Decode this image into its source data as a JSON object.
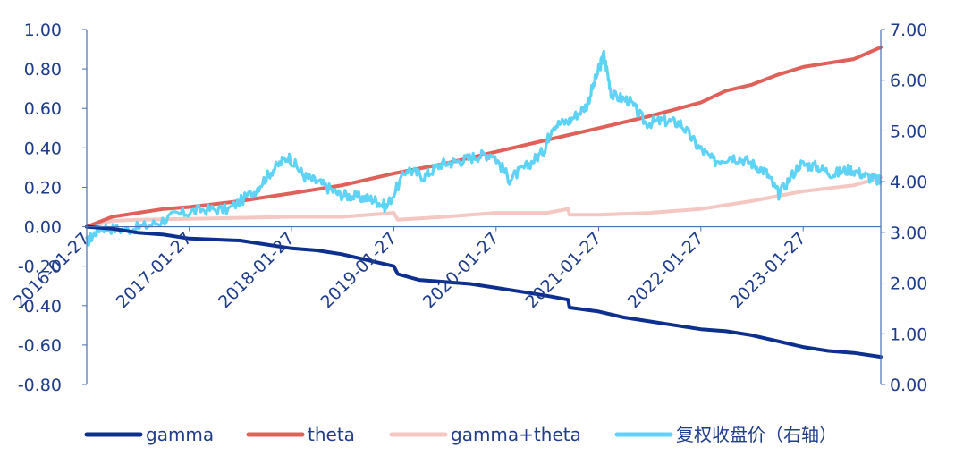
{
  "chart_data": {
    "type": "line",
    "title": "",
    "xlabel": "",
    "ylabel_left": "",
    "ylabel_right": "",
    "x_tick_labels": [
      "2016-01-27",
      "2017-01-27",
      "2018-01-27",
      "2019-01-27",
      "2020-01-27",
      "2021-01-27",
      "2022-01-27",
      "2023-01-27"
    ],
    "x_range": [
      "2016-01-27",
      "2023-10-31"
    ],
    "y_left_range": [
      -0.8,
      1.0
    ],
    "y_left_ticks": [
      "1.00",
      "0.80",
      "0.60",
      "0.40",
      "0.20",
      "0.00",
      "-0.20",
      "-0.40",
      "-0.60",
      "-0.80"
    ],
    "y_right_range": [
      0.0,
      7.0
    ],
    "y_right_ticks": [
      "7.00",
      "6.00",
      "5.00",
      "4.00",
      "3.00",
      "2.00",
      "1.00",
      "0.00"
    ],
    "grid": false,
    "legend_position": "bottom",
    "series": [
      {
        "name": "gamma",
        "axis": "left",
        "color": "#0d2f8f",
        "points": [
          [
            "2016-01-27",
            0.0
          ],
          [
            "2016-04-27",
            -0.01
          ],
          [
            "2016-07-27",
            -0.03
          ],
          [
            "2016-10-27",
            -0.04
          ],
          [
            "2017-01-27",
            -0.06
          ],
          [
            "2017-04-27",
            -0.065
          ],
          [
            "2017-07-27",
            -0.07
          ],
          [
            "2017-10-27",
            -0.09
          ],
          [
            "2018-01-27",
            -0.11
          ],
          [
            "2018-04-27",
            -0.12
          ],
          [
            "2018-07-27",
            -0.14
          ],
          [
            "2018-10-27",
            -0.17
          ],
          [
            "2019-01-27",
            -0.2
          ],
          [
            "2019-02-10",
            -0.24
          ],
          [
            "2019-04-27",
            -0.27
          ],
          [
            "2019-07-27",
            -0.28
          ],
          [
            "2019-10-27",
            -0.29
          ],
          [
            "2020-01-27",
            -0.31
          ],
          [
            "2020-04-27",
            -0.33
          ],
          [
            "2020-07-27",
            -0.35
          ],
          [
            "2020-10-10",
            -0.37
          ],
          [
            "2020-10-15",
            -0.41
          ],
          [
            "2021-01-27",
            -0.43
          ],
          [
            "2021-04-27",
            -0.46
          ],
          [
            "2021-07-27",
            -0.48
          ],
          [
            "2021-10-27",
            -0.5
          ],
          [
            "2022-01-27",
            -0.52
          ],
          [
            "2022-04-27",
            -0.53
          ],
          [
            "2022-07-27",
            -0.55
          ],
          [
            "2022-10-27",
            -0.58
          ],
          [
            "2023-01-27",
            -0.61
          ],
          [
            "2023-04-27",
            -0.63
          ],
          [
            "2023-07-27",
            -0.64
          ],
          [
            "2023-10-31",
            -0.66
          ]
        ]
      },
      {
        "name": "theta",
        "axis": "left",
        "color": "#e0605a",
        "points": [
          [
            "2016-01-27",
            0.0
          ],
          [
            "2016-04-27",
            0.05
          ],
          [
            "2016-07-27",
            0.07
          ],
          [
            "2016-10-27",
            0.09
          ],
          [
            "2017-01-27",
            0.1
          ],
          [
            "2017-07-27",
            0.13
          ],
          [
            "2018-01-27",
            0.17
          ],
          [
            "2018-07-27",
            0.21
          ],
          [
            "2019-01-27",
            0.27
          ],
          [
            "2019-07-27",
            0.32
          ],
          [
            "2020-01-27",
            0.38
          ],
          [
            "2020-07-27",
            0.44
          ],
          [
            "2021-01-27",
            0.5
          ],
          [
            "2021-07-27",
            0.56
          ],
          [
            "2022-01-27",
            0.63
          ],
          [
            "2022-04-27",
            0.69
          ],
          [
            "2022-07-27",
            0.72
          ],
          [
            "2022-10-27",
            0.77
          ],
          [
            "2023-01-27",
            0.81
          ],
          [
            "2023-07-27",
            0.85
          ],
          [
            "2023-10-31",
            0.91
          ]
        ]
      },
      {
        "name": "gamma+theta",
        "axis": "left",
        "color": "#f4c7c3",
        "points": [
          [
            "2016-01-27",
            0.0
          ],
          [
            "2016-04-27",
            0.03
          ],
          [
            "2016-07-27",
            0.035
          ],
          [
            "2017-01-27",
            0.04
          ],
          [
            "2017-07-27",
            0.045
          ],
          [
            "2018-01-27",
            0.05
          ],
          [
            "2018-07-27",
            0.05
          ],
          [
            "2019-01-27",
            0.07
          ],
          [
            "2019-02-10",
            0.035
          ],
          [
            "2019-07-27",
            0.05
          ],
          [
            "2020-01-27",
            0.07
          ],
          [
            "2020-07-27",
            0.07
          ],
          [
            "2020-10-10",
            0.09
          ],
          [
            "2020-10-15",
            0.06
          ],
          [
            "2021-01-27",
            0.06
          ],
          [
            "2021-07-27",
            0.07
          ],
          [
            "2022-01-27",
            0.09
          ],
          [
            "2022-07-27",
            0.13
          ],
          [
            "2023-01-27",
            0.18
          ],
          [
            "2023-07-27",
            0.21
          ],
          [
            "2023-10-31",
            0.25
          ]
        ]
      },
      {
        "name": "复权收盘价（右轴）",
        "axis": "right",
        "color": "#5fd3f5",
        "points": [
          [
            "2016-01-27",
            2.8
          ],
          [
            "2016-03-15",
            3.1
          ],
          [
            "2016-06-15",
            3.05
          ],
          [
            "2016-09-15",
            3.15
          ],
          [
            "2016-12-15",
            3.35
          ],
          [
            "2017-03-15",
            3.45
          ],
          [
            "2017-06-15",
            3.45
          ],
          [
            "2017-09-15",
            3.8
          ],
          [
            "2017-11-15",
            4.2
          ],
          [
            "2018-01-15",
            4.5
          ],
          [
            "2018-03-15",
            4.1
          ],
          [
            "2018-05-15",
            3.95
          ],
          [
            "2018-07-15",
            3.75
          ],
          [
            "2018-09-15",
            3.7
          ],
          [
            "2018-11-15",
            3.65
          ],
          [
            "2019-01-01",
            3.5
          ],
          [
            "2019-03-15",
            4.25
          ],
          [
            "2019-05-15",
            4.1
          ],
          [
            "2019-07-15",
            4.35
          ],
          [
            "2019-09-15",
            4.4
          ],
          [
            "2019-11-15",
            4.5
          ],
          [
            "2020-01-15",
            4.55
          ],
          [
            "2020-03-15",
            4.05
          ],
          [
            "2020-05-15",
            4.3
          ],
          [
            "2020-07-15",
            4.6
          ],
          [
            "2020-08-15",
            5.1
          ],
          [
            "2020-10-15",
            5.2
          ],
          [
            "2020-12-15",
            5.5
          ],
          [
            "2021-01-27",
            6.2
          ],
          [
            "2021-02-15",
            6.5
          ],
          [
            "2021-03-15",
            5.7
          ],
          [
            "2021-05-15",
            5.6
          ],
          [
            "2021-07-15",
            5.15
          ],
          [
            "2021-09-15",
            5.2
          ],
          [
            "2021-11-15",
            5.15
          ],
          [
            "2022-01-15",
            4.7
          ],
          [
            "2022-03-15",
            4.4
          ],
          [
            "2022-05-15",
            4.5
          ],
          [
            "2022-07-15",
            4.4
          ],
          [
            "2022-09-15",
            4.2
          ],
          [
            "2022-11-01",
            3.75
          ],
          [
            "2023-01-15",
            4.35
          ],
          [
            "2023-03-15",
            4.3
          ],
          [
            "2023-05-15",
            4.15
          ],
          [
            "2023-07-15",
            4.25
          ],
          [
            "2023-09-15",
            4.1
          ],
          [
            "2023-10-31",
            4.0
          ]
        ]
      }
    ]
  }
}
